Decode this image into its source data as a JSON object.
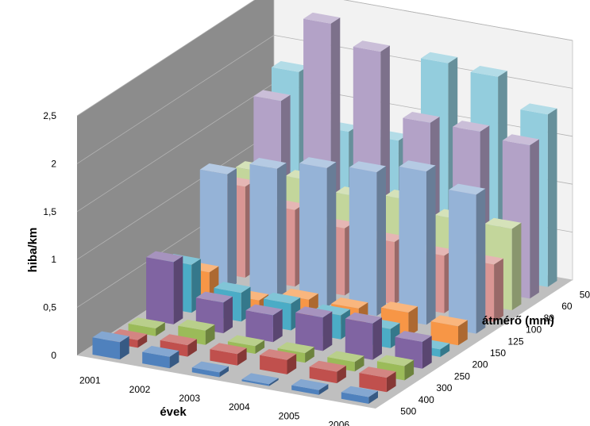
{
  "chart_data": {
    "type": "bar",
    "variant": "3d-column",
    "xlabel": "évek",
    "ylabel": "hiba/km",
    "zlabel": "átmérő (mm)",
    "years": [
      "2001",
      "2002",
      "2003",
      "2004",
      "2005",
      "2006"
    ],
    "y_ticks": [
      "0",
      "0,5",
      "1",
      "1,5",
      "2",
      "2,5"
    ],
    "ylim": [
      0,
      2.5
    ],
    "gridlines": true,
    "series": [
      {
        "label": "500",
        "color": "#4f81bd",
        "values": [
          0.18,
          0.12,
          0.05,
          0.02,
          0.05,
          0.07
        ]
      },
      {
        "label": "400",
        "color": "#c0504d",
        "values": [
          0.08,
          0.12,
          0.12,
          0.15,
          0.12,
          0.15
        ]
      },
      {
        "label": "300",
        "color": "#9bbb59",
        "values": [
          0.08,
          0.15,
          0.08,
          0.1,
          0.1,
          0.15
        ]
      },
      {
        "label": "250",
        "color": "#8064a2",
        "values": [
          0.65,
          0.32,
          0.28,
          0.35,
          0.38,
          0.28
        ]
      },
      {
        "label": "200",
        "color": "#4bacc6",
        "values": [
          0.5,
          0.3,
          0.28,
          0.25,
          0.2,
          0.08
        ]
      },
      {
        "label": "150",
        "color": "#f79646",
        "values": [
          0.3,
          0.1,
          0.2,
          0.2,
          0.25,
          0.2
        ]
      },
      {
        "label": "125",
        "color": "#95b3d7",
        "values": [
          1.2,
          1.35,
          1.45,
          1.5,
          1.6,
          1.45
        ]
      },
      {
        "label": "100",
        "color": "#da9694",
        "values": [
          0.95,
          0.8,
          0.7,
          0.65,
          0.6,
          0.6
        ]
      },
      {
        "label": "80",
        "color": "#c3d69b",
        "values": [
          0.98,
          0.98,
          0.9,
          0.96,
          0.85,
          0.85
        ]
      },
      {
        "label": "60",
        "color": "#b3a2c7",
        "values": [
          1.6,
          2.5,
          2.3,
          1.65,
          1.65,
          1.6
        ]
      },
      {
        "label": "50",
        "color": "#93cddd",
        "values": [
          1.78,
          1.25,
          1.25,
          2.15,
          2.1,
          1.8
        ]
      }
    ]
  }
}
